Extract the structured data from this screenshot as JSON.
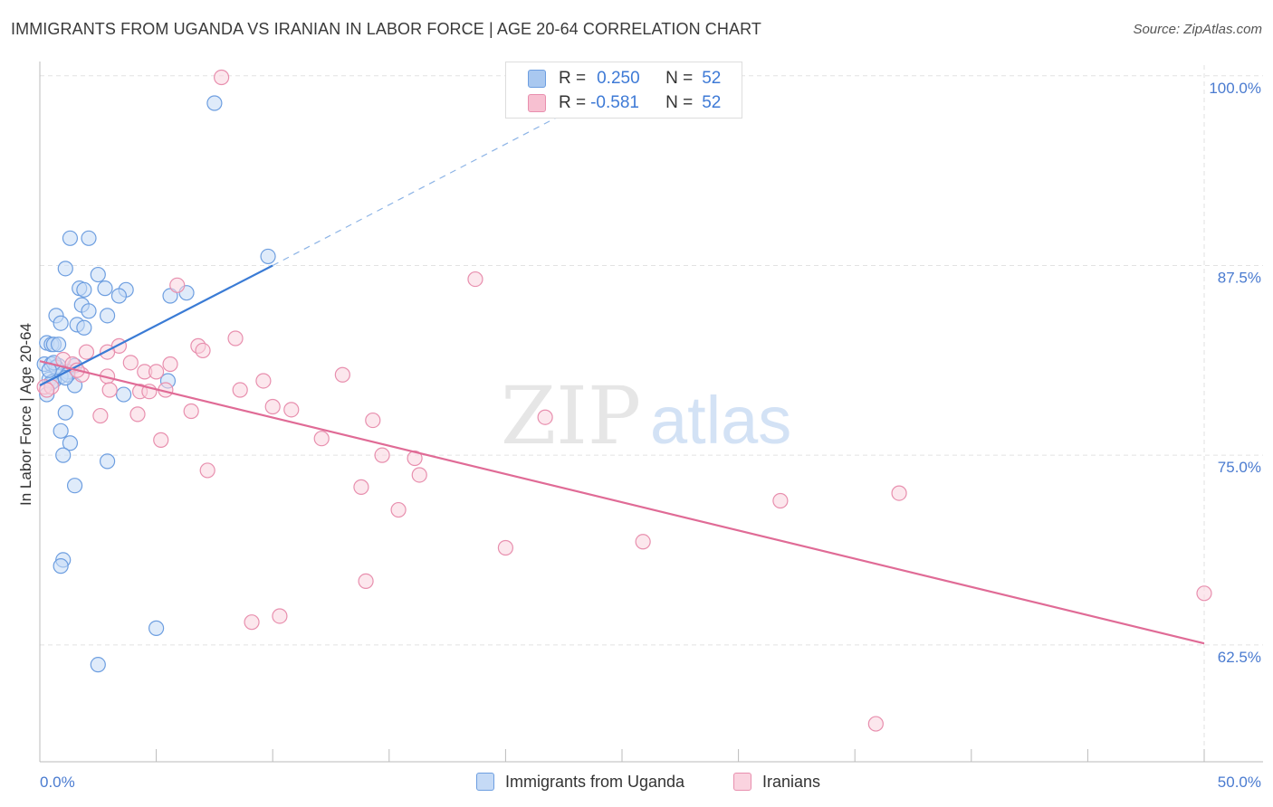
{
  "header": {
    "title": "IMMIGRANTS FROM UGANDA VS IRANIAN IN LABOR FORCE | AGE 20-64 CORRELATION CHART",
    "source": "Source: ZipAtlas.com"
  },
  "watermark": {
    "zip": "ZIP",
    "atlas": "atlas"
  },
  "legend": {
    "rows": [
      {
        "r_label": "R =",
        "r_value": "0.250",
        "n_label": "N =",
        "n_value": "52",
        "color": "#a9c8f0",
        "border": "#6d9ee0"
      },
      {
        "r_label": "R =",
        "r_value": "-0.581",
        "n_label": "N =",
        "n_value": "52",
        "color": "#f7c0d1",
        "border": "#e88fae"
      }
    ]
  },
  "bottom_legend": [
    {
      "label": "Immigrants from Uganda",
      "color": "#c5daf6",
      "border": "#6d9ee0"
    },
    {
      "label": "Iranians",
      "color": "#fad3df",
      "border": "#e88fae"
    }
  ],
  "chart_data": {
    "type": "scatter",
    "title": "IMMIGRANTS FROM UGANDA VS IRANIAN IN LABOR FORCE | AGE 20-64 CORRELATION CHART",
    "xlabel": "",
    "ylabel": "In Labor Force | Age 20-64",
    "xlim": [
      0,
      50
    ],
    "ylim": [
      54.8,
      101.3
    ],
    "x_tick_labels": [
      {
        "value": 0,
        "label": "0.0%"
      },
      {
        "value": 50,
        "label": "50.0%"
      }
    ],
    "y_ticks": [
      {
        "value": 100,
        "label": "100.0%"
      },
      {
        "value": 87.5,
        "label": "87.5%"
      },
      {
        "value": 75,
        "label": "75.0%"
      },
      {
        "value": 62.5,
        "label": "62.5%"
      }
    ],
    "x_minor_ticks": [
      0,
      5,
      10,
      15,
      20,
      25,
      30,
      35,
      40,
      45,
      50
    ],
    "grid": true,
    "legend_position": "top-center",
    "series": [
      {
        "name": "Immigrants from Uganda",
        "color": "#6d9ee0",
        "fill": "#c5daf6",
        "points": [
          [
            7.5,
            98.2
          ],
          [
            1.3,
            89.3
          ],
          [
            2.1,
            89.3
          ],
          [
            1.1,
            87.3
          ],
          [
            2.5,
            86.9
          ],
          [
            1.7,
            86.0
          ],
          [
            1.9,
            85.9
          ],
          [
            3.7,
            85.9
          ],
          [
            2.8,
            86.0
          ],
          [
            3.4,
            85.5
          ],
          [
            5.6,
            85.5
          ],
          [
            1.8,
            84.9
          ],
          [
            2.1,
            84.5
          ],
          [
            0.7,
            84.2
          ],
          [
            2.9,
            84.2
          ],
          [
            0.9,
            83.7
          ],
          [
            1.6,
            83.6
          ],
          [
            1.9,
            83.4
          ],
          [
            0.3,
            82.4
          ],
          [
            0.5,
            82.3
          ],
          [
            0.6,
            82.3
          ],
          [
            0.8,
            82.3
          ],
          [
            0.2,
            81.0
          ],
          [
            0.5,
            81.0
          ],
          [
            0.8,
            80.9
          ],
          [
            1.2,
            80.5
          ],
          [
            0.9,
            80.2
          ],
          [
            0.4,
            80.0
          ],
          [
            0.6,
            79.9
          ],
          [
            5.5,
            79.9
          ],
          [
            0.5,
            79.8
          ],
          [
            1.5,
            79.6
          ],
          [
            0.3,
            79.0
          ],
          [
            3.6,
            79.0
          ],
          [
            1.1,
            77.8
          ],
          [
            0.9,
            76.6
          ],
          [
            1.3,
            75.8
          ],
          [
            1.0,
            75.0
          ],
          [
            2.9,
            74.6
          ],
          [
            1.5,
            73.0
          ],
          [
            1.0,
            68.1
          ],
          [
            0.9,
            67.7
          ],
          [
            5.0,
            63.6
          ],
          [
            2.5,
            61.2
          ],
          [
            9.8,
            88.1
          ],
          [
            6.3,
            85.7
          ],
          [
            1.5,
            80.9
          ],
          [
            0.7,
            80.8
          ],
          [
            1.2,
            80.3
          ],
          [
            1.1,
            80.1
          ],
          [
            0.6,
            81.1
          ],
          [
            0.4,
            80.6
          ]
        ]
      },
      {
        "name": "Iranians",
        "color": "#e88fae",
        "fill": "#fad3df",
        "points": [
          [
            7.8,
            99.9
          ],
          [
            18.7,
            86.6
          ],
          [
            5.9,
            86.2
          ],
          [
            8.4,
            82.7
          ],
          [
            6.8,
            82.2
          ],
          [
            7.0,
            81.9
          ],
          [
            3.4,
            82.2
          ],
          [
            2.0,
            81.8
          ],
          [
            2.9,
            81.8
          ],
          [
            1.0,
            81.3
          ],
          [
            3.9,
            81.1
          ],
          [
            1.4,
            81.0
          ],
          [
            5.6,
            81.0
          ],
          [
            4.5,
            80.5
          ],
          [
            5.0,
            80.5
          ],
          [
            13.0,
            80.3
          ],
          [
            1.8,
            80.3
          ],
          [
            2.9,
            80.2
          ],
          [
            9.6,
            79.9
          ],
          [
            0.2,
            79.5
          ],
          [
            0.5,
            79.5
          ],
          [
            3.0,
            79.3
          ],
          [
            8.6,
            79.3
          ],
          [
            5.4,
            79.3
          ],
          [
            4.3,
            79.2
          ],
          [
            4.7,
            79.2
          ],
          [
            10.0,
            78.2
          ],
          [
            10.8,
            78.0
          ],
          [
            6.5,
            77.9
          ],
          [
            2.6,
            77.6
          ],
          [
            4.2,
            77.7
          ],
          [
            14.3,
            77.3
          ],
          [
            21.7,
            77.5
          ],
          [
            12.1,
            76.1
          ],
          [
            5.2,
            76.0
          ],
          [
            14.7,
            75.0
          ],
          [
            16.1,
            74.8
          ],
          [
            7.2,
            74.0
          ],
          [
            16.3,
            73.7
          ],
          [
            13.8,
            72.9
          ],
          [
            36.9,
            72.5
          ],
          [
            31.8,
            72.0
          ],
          [
            15.4,
            71.4
          ],
          [
            25.9,
            69.3
          ],
          [
            20.0,
            68.9
          ],
          [
            14.0,
            66.7
          ],
          [
            50.0,
            65.9
          ],
          [
            10.3,
            64.4
          ],
          [
            9.1,
            64.0
          ],
          [
            35.9,
            57.3
          ],
          [
            0.3,
            79.3
          ],
          [
            1.6,
            80.6
          ]
        ]
      }
    ],
    "trend_lines": [
      {
        "series": "Immigrants from Uganda",
        "x0": 0,
        "y0": 79.6,
        "x1": 10.0,
        "y1": 87.5,
        "dash_to_x": 22.5,
        "dash_to_y": 97.5
      },
      {
        "series": "Iranians",
        "x0": 0,
        "y0": 81.2,
        "x1": 50,
        "y1": 62.6
      }
    ]
  }
}
